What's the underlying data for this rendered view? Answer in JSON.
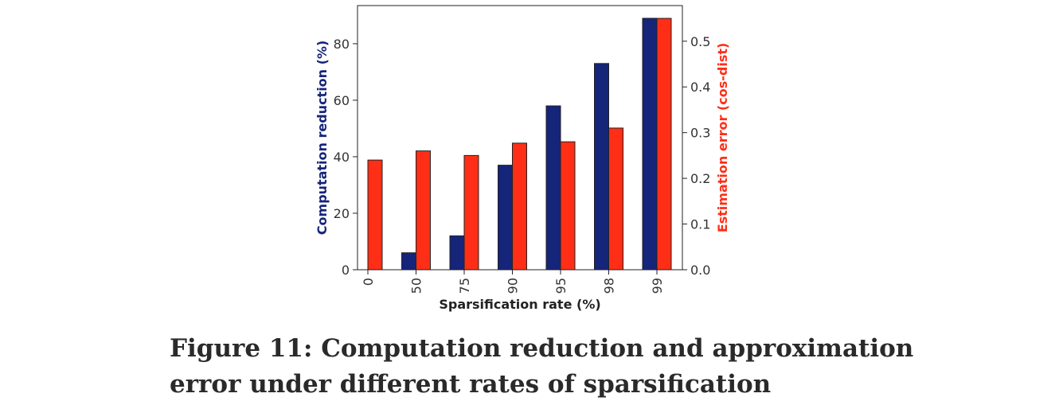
{
  "chart_data": {
    "type": "bar",
    "categories": [
      "0",
      "50",
      "75",
      "90",
      "95",
      "98",
      "99"
    ],
    "xlabel": "Sparsification rate (%)",
    "series": [
      {
        "axis": "left",
        "color": "#15257a",
        "values": [
          0,
          6,
          12,
          37,
          58,
          73,
          89
        ]
      },
      {
        "axis": "right",
        "color": "#ff2e17",
        "values": [
          0.24,
          0.26,
          0.25,
          0.277,
          0.28,
          0.31,
          0.55
        ]
      }
    ],
    "ylabel_left": "Computation reduction (%)",
    "ylabel_left_color": "#15257a",
    "ylim_left": [
      0,
      93.5
    ],
    "yticks_left": [
      0,
      20,
      40,
      60,
      80
    ],
    "ylabel_right": "Estimation error (cos-dist)",
    "ylabel_right_color": "#ff2e17",
    "ylim_right": [
      0,
      0.578
    ],
    "yticks_right": [
      "0.0",
      "0.1",
      "0.2",
      "0.3",
      "0.4",
      "0.5"
    ],
    "grid": false,
    "legend": "none"
  },
  "caption": "Figure 11: Computation reduction and approximation error under different rates of sparsification"
}
